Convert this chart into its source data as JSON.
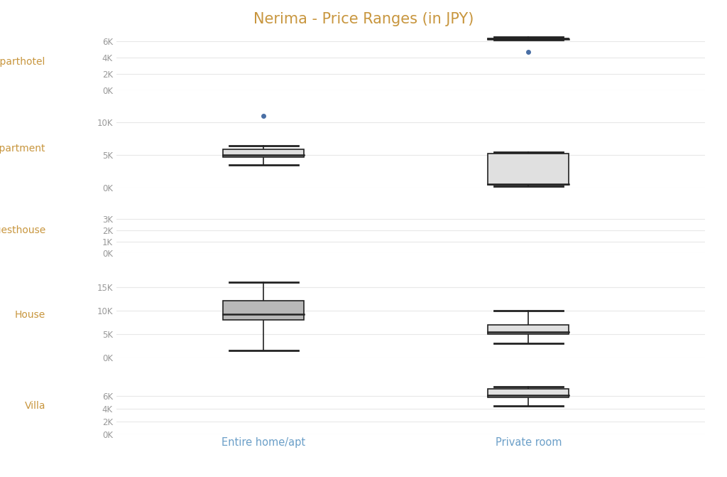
{
  "title": "Nerima - Price Ranges (in JPY)",
  "title_color": "#c8963e",
  "room_types": [
    "Entire home/apt",
    "Private room"
  ],
  "property_types": [
    "Aparthotel",
    "Apartment",
    "Guesthouse",
    "House",
    "Villa"
  ],
  "property_label_color": "#c8963e",
  "xlabel_color": "#6b9fc8",
  "box_facecolor_light": "#e0e0e0",
  "box_facecolor_dark": "#b8b8b8",
  "box_edgecolor": "#222222",
  "median_color": "#222222",
  "whisker_color": "#222222",
  "flier_color": "#4a6fa5",
  "background_color": "#ffffff",
  "grid_color": "#e8e8e8",
  "boxes": {
    "Aparthotel": {
      "Entire home/apt": null,
      "Private room": {
        "whislo": 6200,
        "q1": 6300,
        "med": 6300,
        "q3": 6400,
        "whishi": 6600,
        "fliers": [
          4750
        ],
        "dark": false
      }
    },
    "Apartment": {
      "Entire home/apt": {
        "whislo": 3500,
        "q1": 4700,
        "med": 5000,
        "q3": 5900,
        "whishi": 6500,
        "fliers": [
          11000
        ],
        "dark": false
      },
      "Private room": {
        "whislo": 200,
        "q1": 400,
        "med": 500,
        "q3": 5200,
        "whishi": 5500,
        "fliers": [],
        "dark": false
      }
    },
    "Guesthouse": {
      "Entire home/apt": null,
      "Private room": null
    },
    "House": {
      "Entire home/apt": {
        "whislo": 1500,
        "q1": 8000,
        "med": 9200,
        "q3": 12000,
        "whishi": 16000,
        "fliers": [],
        "dark": true
      },
      "Private room": {
        "whislo": 3000,
        "q1": 5000,
        "med": 5500,
        "q3": 7000,
        "whishi": 10000,
        "fliers": [],
        "dark": false
      }
    },
    "Villa": {
      "Entire home/apt": null,
      "Private room": {
        "whislo": 4500,
        "q1": 5800,
        "med": 6200,
        "q3": 7200,
        "whishi": 7500,
        "fliers": [],
        "dark": false
      }
    }
  },
  "ylims": {
    "Aparthotel": [
      0,
      7000
    ],
    "Apartment": [
      0,
      12000
    ],
    "Guesthouse": [
      0,
      4000
    ],
    "House": [
      0,
      18000
    ],
    "Villa": [
      0,
      9000
    ]
  },
  "yticks": {
    "Aparthotel": [
      0,
      2000,
      4000,
      6000
    ],
    "Apartment": [
      0,
      5000,
      10000
    ],
    "Guesthouse": [
      0,
      1000,
      2000,
      3000
    ],
    "House": [
      0,
      5000,
      10000,
      15000
    ],
    "Villa": [
      0,
      2000,
      4000,
      6000
    ]
  },
  "ytick_labels": {
    "Aparthotel": [
      "0K",
      "2K",
      "4K",
      "6K"
    ],
    "Apartment": [
      "0K",
      "5K",
      "10K"
    ],
    "Guesthouse": [
      "0K",
      "1K",
      "2K",
      "3K"
    ],
    "House": [
      "0K",
      "5K",
      "10K",
      "15K"
    ],
    "Villa": [
      "0K",
      "2K",
      "4K",
      "6K"
    ]
  },
  "row_heights": [
    1.6,
    2.2,
    1.3,
    2.4,
    1.6
  ]
}
